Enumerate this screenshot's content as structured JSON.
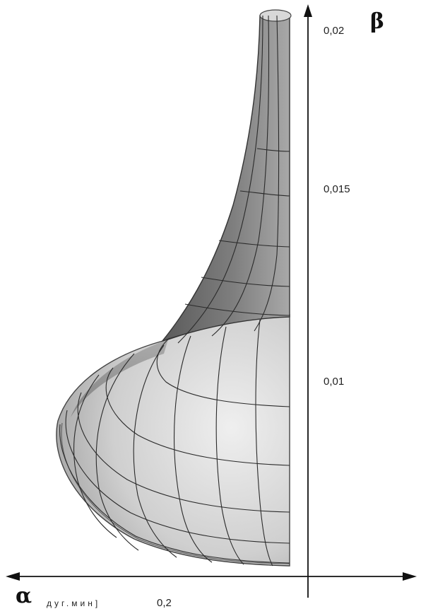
{
  "axes": {
    "beta_symbol": "β",
    "alpha_symbol": "α",
    "alpha_unit": "дуг.мин]",
    "alpha_value": "0,2",
    "beta_ticks": [
      "0,02",
      "0,015",
      "0,01"
    ]
  },
  "colors": {
    "axis": "#111111",
    "surface_dark": "#6e6e6e",
    "surface_mid": "#9a9a9a",
    "surface_light": "#e4e4e4",
    "grid": "#2a2a2a"
  }
}
